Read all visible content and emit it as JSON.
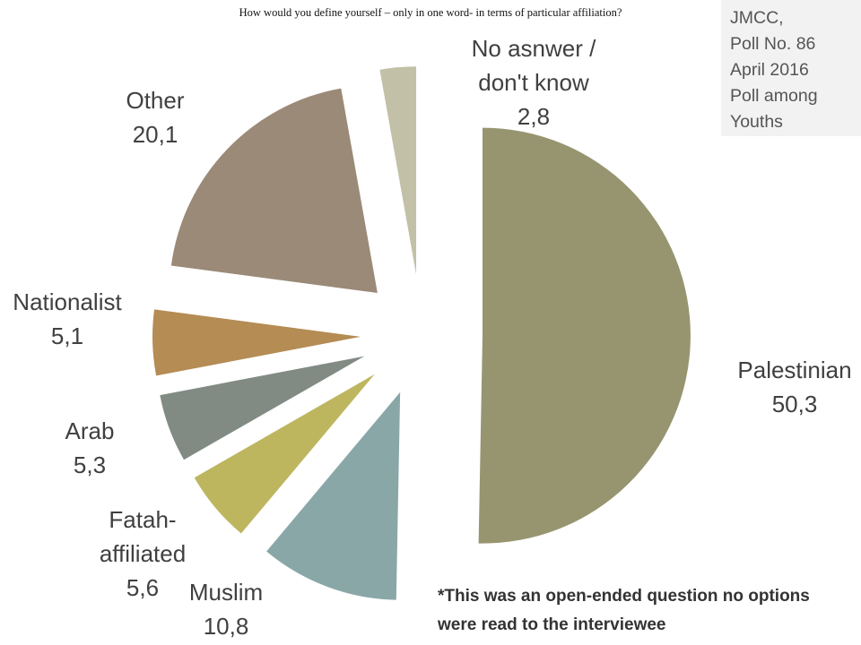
{
  "source": {
    "lines": [
      "JMCC,",
      "Poll No. 86",
      "April 2016",
      "Poll among",
      "Youths"
    ]
  },
  "footnote": {
    "line1": "*This was an open-ended question no options",
    "line2": "were read to the interviewee"
  },
  "chart_data": {
    "type": "pie",
    "title": "How would you define yourself – only in one word- in terms of particular affiliation?",
    "slices": [
      {
        "name": "Palestinian",
        "value": 50.3,
        "value_label": "50,3",
        "color": "#979570"
      },
      {
        "name": "Muslim",
        "value": 10.8,
        "value_label": "10,8",
        "color": "#8aa7a8"
      },
      {
        "name": "Fatah-affiliated",
        "value": 5.6,
        "value_label": "5,6",
        "color": "#bdb65f",
        "name_line1": "Fatah-",
        "name_line2": "affiliated"
      },
      {
        "name": "Arab",
        "value": 5.3,
        "value_label": "5,3",
        "color": "#818b84"
      },
      {
        "name": "Nationalist",
        "value": 5.1,
        "value_label": "5,1",
        "color": "#b48c54"
      },
      {
        "name": "Other",
        "value": 20.1,
        "value_label": "20,1",
        "color": "#9b8a78"
      },
      {
        "name": "No asnwer / don't know",
        "value": 2.8,
        "value_label": "2,8",
        "color": "#c3c0a8",
        "name_line1": "No asnwer /",
        "name_line2": "don't know"
      }
    ],
    "exploded": true,
    "start_angle": "12 o'clock, clockwise"
  }
}
